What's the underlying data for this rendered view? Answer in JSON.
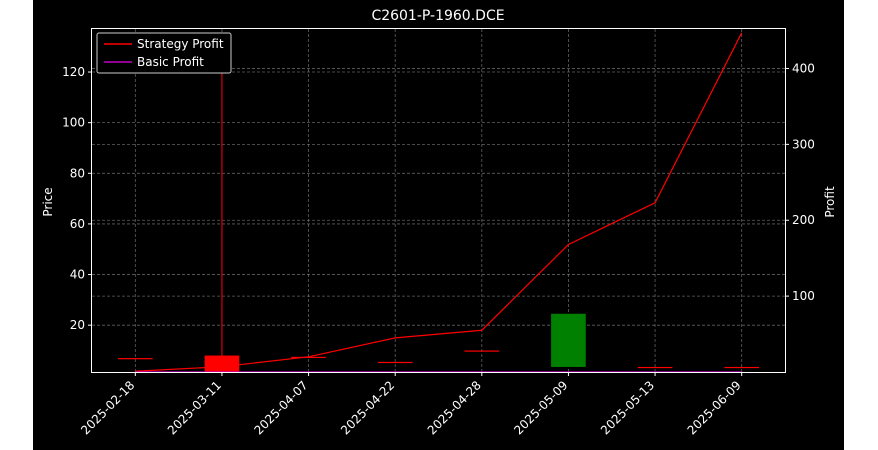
{
  "colors": {
    "background": "#000000",
    "foreground": "#ffffff",
    "grid": "#808080",
    "strategy_line": "#ff0000",
    "basic_line": "#bf00bf",
    "candle_up": "#ff0000",
    "candle_down": "#008000"
  },
  "chart_data": {
    "type": "line",
    "title": "C2601-P-1960.DCE",
    "ylabel": "Price",
    "y2label": "Profit",
    "categories": [
      "2025-02-18",
      "2025-03-11",
      "2025-04-07",
      "2025-04-22",
      "2025-04-28",
      "2025-05-09",
      "2025-05-13",
      "2025-06-09"
    ],
    "ylim": [
      1.5,
      137
    ],
    "yticks": [
      20,
      40,
      60,
      80,
      100,
      120
    ],
    "y2lim": [
      0,
      452
    ],
    "y2ticks": [
      100,
      200,
      300,
      400
    ],
    "grid": true,
    "legend_position": "top-left",
    "legend": [
      "Strategy Profit",
      "Basic Profit"
    ],
    "candles": [
      {
        "date": "2025-02-18",
        "open": 7.0,
        "close": 7.0,
        "high": 7.0,
        "low": 7.0
      },
      {
        "date": "2025-03-11",
        "open": 1.5,
        "close": 8.0,
        "high": 122,
        "low": 1.5
      },
      {
        "date": "2025-04-07",
        "open": 7.5,
        "close": 7.5,
        "high": 7.5,
        "low": 7.5
      },
      {
        "date": "2025-04-22",
        "open": 5.5,
        "close": 5.5,
        "high": 5.5,
        "low": 5.5
      },
      {
        "date": "2025-04-28",
        "open": 10.0,
        "close": 10.0,
        "high": 10.0,
        "low": 10.0
      },
      {
        "date": "2025-05-09",
        "open": 24.5,
        "close": 3.5,
        "high": 24.5,
        "low": 3.5
      },
      {
        "date": "2025-05-13",
        "open": 3.5,
        "close": 3.5,
        "high": 3.5,
        "low": 3.5
      },
      {
        "date": "2025-06-09",
        "open": 3.5,
        "close": 3.5,
        "high": 3.5,
        "low": 3.5
      }
    ],
    "series": [
      {
        "name": "Strategy Profit",
        "axis": "right",
        "values": [
          1,
          7,
          20,
          45,
          55,
          168,
          223,
          447
        ]
      },
      {
        "name": "Basic Profit",
        "axis": "right",
        "values": [
          0,
          0,
          0,
          0,
          0,
          0,
          0,
          0
        ]
      }
    ]
  }
}
